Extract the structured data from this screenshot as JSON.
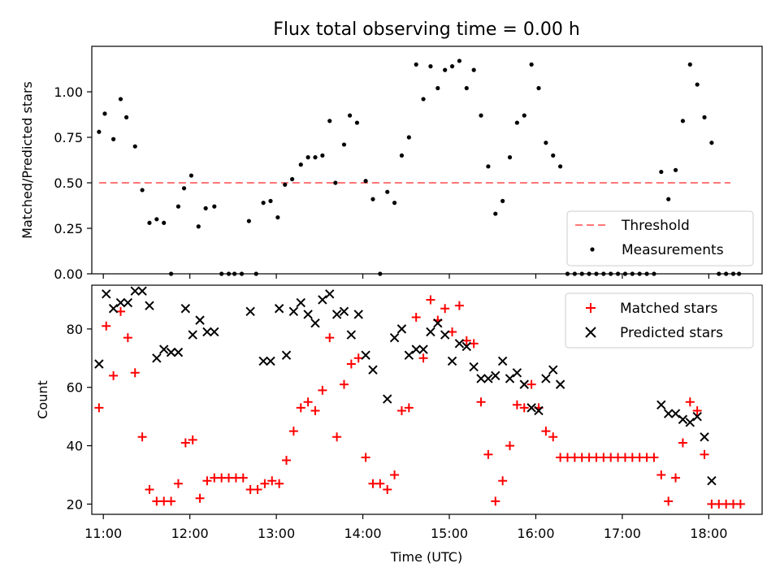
{
  "chart_data": [
    {
      "type": "scatter",
      "title": "Flux total observing time = 0.00 h",
      "xlabel": "",
      "ylabel": "Matched/Predicted stars",
      "xlim": [
        "10:52",
        "18:37"
      ],
      "ylim": [
        0,
        1.25
      ],
      "yticks": [
        "0.00",
        "0.25",
        "0.50",
        "0.75",
        "1.00"
      ],
      "xticks": [
        "11:00",
        "12:00",
        "13:00",
        "14:00",
        "15:00",
        "16:00",
        "17:00",
        "18:00"
      ],
      "grid": false,
      "legend_position": "lower right",
      "threshold": {
        "name": "Threshold",
        "value": 0.5,
        "x_range": [
          "10:57",
          "18:15"
        ],
        "color": "#ff7777",
        "style": "dashed"
      },
      "series": [
        {
          "name": "Measurements",
          "color": "#000000",
          "marker": "dot",
          "points": [
            [
              "10:57",
              0.78
            ],
            [
              "11:01",
              0.88
            ],
            [
              "11:07",
              0.74
            ],
            [
              "11:12",
              0.96
            ],
            [
              "11:16",
              0.86
            ],
            [
              "11:22",
              0.7
            ],
            [
              "11:27",
              0.46
            ],
            [
              "11:32",
              0.28
            ],
            [
              "11:37",
              0.3
            ],
            [
              "11:42",
              0.28
            ],
            [
              "11:47",
              0.0
            ],
            [
              "11:52",
              0.37
            ],
            [
              "11:56",
              0.47
            ],
            [
              "12:01",
              0.54
            ],
            [
              "12:06",
              0.26
            ],
            [
              "12:11",
              0.36
            ],
            [
              "12:17",
              0.37
            ],
            [
              "12:22",
              0.0
            ],
            [
              "12:27",
              0.0
            ],
            [
              "12:31",
              0.0
            ],
            [
              "12:36",
              0.0
            ],
            [
              "12:41",
              0.29
            ],
            [
              "12:46",
              0.0
            ],
            [
              "12:51",
              0.39
            ],
            [
              "12:56",
              0.4
            ],
            [
              "13:01",
              0.31
            ],
            [
              "13:06",
              0.49
            ],
            [
              "13:11",
              0.52
            ],
            [
              "13:17",
              0.6
            ],
            [
              "13:22",
              0.64
            ],
            [
              "13:27",
              0.64
            ],
            [
              "13:32",
              0.65
            ],
            [
              "13:37",
              0.84
            ],
            [
              "13:41",
              0.5
            ],
            [
              "13:47",
              0.71
            ],
            [
              "13:51",
              0.87
            ],
            [
              "13:56",
              0.83
            ],
            [
              "14:02",
              0.51
            ],
            [
              "14:07",
              0.41
            ],
            [
              "14:12",
              0.0
            ],
            [
              "14:17",
              0.45
            ],
            [
              "14:22",
              0.39
            ],
            [
              "14:27",
              0.65
            ],
            [
              "14:32",
              0.75
            ],
            [
              "14:37",
              1.15
            ],
            [
              "14:42",
              0.96
            ],
            [
              "14:47",
              1.14
            ],
            [
              "14:52",
              1.02
            ],
            [
              "14:57",
              1.12
            ],
            [
              "15:02",
              1.14
            ],
            [
              "15:07",
              1.17
            ],
            [
              "15:12",
              1.02
            ],
            [
              "15:17",
              1.12
            ],
            [
              "15:22",
              0.87
            ],
            [
              "15:27",
              0.59
            ],
            [
              "15:32",
              0.33
            ],
            [
              "15:37",
              0.4
            ],
            [
              "15:42",
              0.64
            ],
            [
              "15:47",
              0.83
            ],
            [
              "15:52",
              0.87
            ],
            [
              "15:57",
              1.15
            ],
            [
              "16:02",
              1.02
            ],
            [
              "16:07",
              0.72
            ],
            [
              "16:12",
              0.65
            ],
            [
              "16:17",
              0.59
            ],
            [
              "16:22",
              0.0
            ],
            [
              "16:27",
              0.0
            ],
            [
              "16:32",
              0.0
            ],
            [
              "16:37",
              0.0
            ],
            [
              "16:42",
              0.0
            ],
            [
              "16:47",
              0.0
            ],
            [
              "16:52",
              0.0
            ],
            [
              "16:57",
              0.0
            ],
            [
              "17:02",
              0.0
            ],
            [
              "17:07",
              0.0
            ],
            [
              "17:12",
              0.0
            ],
            [
              "17:17",
              0.0
            ],
            [
              "17:22",
              0.0
            ],
            [
              "17:27",
              0.56
            ],
            [
              "17:32",
              0.41
            ],
            [
              "17:37",
              0.57
            ],
            [
              "17:42",
              0.84
            ],
            [
              "17:47",
              1.15
            ],
            [
              "17:52",
              1.04
            ],
            [
              "17:57",
              0.86
            ],
            [
              "18:02",
              0.72
            ],
            [
              "18:07",
              0.0
            ],
            [
              "18:12",
              0.0
            ],
            [
              "18:17",
              0.0
            ],
            [
              "18:21",
              0.0
            ]
          ]
        }
      ]
    },
    {
      "type": "scatter",
      "title": "",
      "xlabel": "Time (UTC)",
      "ylabel": "Count",
      "xlim": [
        "10:52",
        "18:37"
      ],
      "ylim": [
        16.5,
        95
      ],
      "yticks": [
        "20",
        "40",
        "60",
        "80"
      ],
      "xticks": [
        "11:00",
        "12:00",
        "13:00",
        "14:00",
        "15:00",
        "16:00",
        "17:00",
        "18:00"
      ],
      "grid": false,
      "legend_position": "upper right",
      "series": [
        {
          "name": "Matched stars",
          "color": "#ff0000",
          "marker": "plus",
          "points": [
            [
              "10:57",
              53
            ],
            [
              "11:02",
              81
            ],
            [
              "11:07",
              64
            ],
            [
              "11:12",
              86
            ],
            [
              "11:17",
              77
            ],
            [
              "11:22",
              65
            ],
            [
              "11:27",
              43
            ],
            [
              "11:32",
              25
            ],
            [
              "11:37",
              21
            ],
            [
              "11:42",
              21
            ],
            [
              "11:47",
              21
            ],
            [
              "11:52",
              27
            ],
            [
              "11:57",
              41
            ],
            [
              "12:02",
              42
            ],
            [
              "12:07",
              22
            ],
            [
              "12:12",
              28
            ],
            [
              "12:17",
              29
            ],
            [
              "12:22",
              29
            ],
            [
              "12:27",
              29
            ],
            [
              "12:32",
              29
            ],
            [
              "12:37",
              29
            ],
            [
              "12:42",
              25
            ],
            [
              "12:47",
              25
            ],
            [
              "12:52",
              27
            ],
            [
              "12:57",
              28
            ],
            [
              "13:02",
              27
            ],
            [
              "13:07",
              35
            ],
            [
              "13:12",
              45
            ],
            [
              "13:17",
              53
            ],
            [
              "13:22",
              55
            ],
            [
              "13:27",
              52
            ],
            [
              "13:32",
              59
            ],
            [
              "13:37",
              77
            ],
            [
              "13:42",
              43
            ],
            [
              "13:47",
              61
            ],
            [
              "13:52",
              68
            ],
            [
              "13:57",
              70
            ],
            [
              "14:02",
              36
            ],
            [
              "14:07",
              27
            ],
            [
              "14:12",
              27
            ],
            [
              "14:17",
              25
            ],
            [
              "14:22",
              30
            ],
            [
              "14:27",
              52
            ],
            [
              "14:32",
              53
            ],
            [
              "14:37",
              84
            ],
            [
              "14:42",
              70
            ],
            [
              "14:47",
              90
            ],
            [
              "14:52",
              83
            ],
            [
              "14:57",
              87
            ],
            [
              "15:02",
              79
            ],
            [
              "15:07",
              88
            ],
            [
              "15:12",
              76
            ],
            [
              "15:17",
              75
            ],
            [
              "15:22",
              55
            ],
            [
              "15:27",
              37
            ],
            [
              "15:32",
              21
            ],
            [
              "15:37",
              28
            ],
            [
              "15:42",
              40
            ],
            [
              "15:47",
              54
            ],
            [
              "15:52",
              53
            ],
            [
              "15:57",
              61
            ],
            [
              "16:02",
              53
            ],
            [
              "16:07",
              45
            ],
            [
              "16:12",
              43
            ],
            [
              "16:17",
              36
            ],
            [
              "16:22",
              36
            ],
            [
              "16:27",
              36
            ],
            [
              "16:32",
              36
            ],
            [
              "16:37",
              36
            ],
            [
              "16:42",
              36
            ],
            [
              "16:47",
              36
            ],
            [
              "16:52",
              36
            ],
            [
              "16:57",
              36
            ],
            [
              "17:02",
              36
            ],
            [
              "17:07",
              36
            ],
            [
              "17:12",
              36
            ],
            [
              "17:17",
              36
            ],
            [
              "17:22",
              36
            ],
            [
              "17:27",
              30
            ],
            [
              "17:32",
              21
            ],
            [
              "17:37",
              29
            ],
            [
              "17:42",
              41
            ],
            [
              "17:47",
              55
            ],
            [
              "17:52",
              52
            ],
            [
              "17:57",
              37
            ],
            [
              "18:02",
              20
            ],
            [
              "18:07",
              20
            ],
            [
              "18:12",
              20
            ],
            [
              "18:17",
              20
            ],
            [
              "18:22",
              20
            ]
          ]
        },
        {
          "name": "Predicted stars",
          "color": "#000000",
          "marker": "x",
          "points": [
            [
              "10:57",
              68
            ],
            [
              "11:02",
              92
            ],
            [
              "11:07",
              87
            ],
            [
              "11:12",
              89
            ],
            [
              "11:17",
              89
            ],
            [
              "11:22",
              93
            ],
            [
              "11:27",
              93
            ],
            [
              "11:32",
              88
            ],
            [
              "11:37",
              70
            ],
            [
              "11:42",
              73
            ],
            [
              "11:47",
              72
            ],
            [
              "11:52",
              72
            ],
            [
              "11:57",
              87
            ],
            [
              "12:02",
              78
            ],
            [
              "12:07",
              83
            ],
            [
              "12:12",
              79
            ],
            [
              "12:17",
              79
            ],
            [
              "12:42",
              86
            ],
            [
              "12:51",
              69
            ],
            [
              "12:56",
              69
            ],
            [
              "13:02",
              87
            ],
            [
              "13:07",
              71
            ],
            [
              "13:12",
              86
            ],
            [
              "13:17",
              89
            ],
            [
              "13:22",
              85
            ],
            [
              "13:27",
              82
            ],
            [
              "13:32",
              90
            ],
            [
              "13:37",
              92
            ],
            [
              "13:42",
              85
            ],
            [
              "13:47",
              86
            ],
            [
              "13:52",
              78
            ],
            [
              "13:57",
              85
            ],
            [
              "14:02",
              71
            ],
            [
              "14:07",
              66
            ],
            [
              "14:17",
              56
            ],
            [
              "14:22",
              77
            ],
            [
              "14:27",
              80
            ],
            [
              "14:32",
              71
            ],
            [
              "14:37",
              73
            ],
            [
              "14:42",
              73
            ],
            [
              "14:47",
              79
            ],
            [
              "14:52",
              82
            ],
            [
              "14:57",
              78
            ],
            [
              "15:02",
              69
            ],
            [
              "15:07",
              75
            ],
            [
              "15:12",
              74
            ],
            [
              "15:17",
              67
            ],
            [
              "15:22",
              63
            ],
            [
              "15:27",
              63
            ],
            [
              "15:32",
              64
            ],
            [
              "15:37",
              69
            ],
            [
              "15:42",
              63
            ],
            [
              "15:47",
              65
            ],
            [
              "15:52",
              61
            ],
            [
              "15:57",
              53
            ],
            [
              "16:02",
              52
            ],
            [
              "16:07",
              63
            ],
            [
              "16:12",
              66
            ],
            [
              "16:17",
              61
            ],
            [
              "17:27",
              54
            ],
            [
              "17:32",
              51
            ],
            [
              "17:37",
              51
            ],
            [
              "17:42",
              49
            ],
            [
              "17:47",
              48
            ],
            [
              "17:52",
              50
            ],
            [
              "17:57",
              43
            ],
            [
              "18:02",
              28
            ]
          ]
        }
      ]
    }
  ]
}
